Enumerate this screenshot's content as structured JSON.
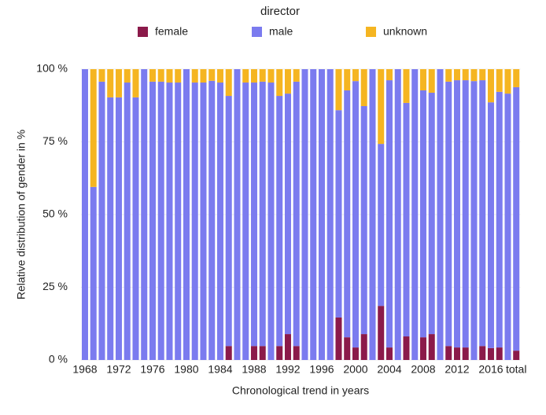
{
  "chart_data": {
    "type": "stacked-bar",
    "legend_title": "director",
    "x_label": "Chronological trend in years",
    "y_label": "Relative distribution of gender in %",
    "categories": [
      "1968",
      null,
      null,
      null,
      "1972",
      null,
      null,
      null,
      "1976",
      null,
      null,
      null,
      "1980",
      null,
      null,
      null,
      "1984",
      null,
      null,
      null,
      "1988",
      null,
      null,
      null,
      "1992",
      null,
      null,
      null,
      "1996",
      null,
      null,
      null,
      "2000",
      null,
      null,
      null,
      "2004",
      null,
      null,
      null,
      "2008",
      null,
      null,
      null,
      "2012",
      null,
      null,
      null,
      "2016",
      null,
      null,
      "total"
    ],
    "series": [
      {
        "name": "female",
        "color": "#8b1a4a",
        "values": [
          0,
          0,
          0,
          0,
          0,
          0,
          0,
          0,
          0,
          0,
          0,
          0,
          0,
          0,
          0,
          0,
          0,
          4.8,
          0,
          0,
          4.8,
          4.8,
          0,
          4.8,
          8.9,
          4.8,
          0,
          0,
          0,
          0,
          14.6,
          7.8,
          4.3,
          8.9,
          0,
          18.6,
          4.3,
          0,
          8.1,
          0,
          7.8,
          8.9,
          0,
          4.8,
          4.3,
          4.3,
          0,
          4.8,
          4.1,
          4.3,
          0,
          3.2
        ]
      },
      {
        "name": "male",
        "color": "#7b7bef",
        "values": [
          100,
          59.5,
          95.7,
          90.3,
          90.3,
          95.4,
          90.3,
          100,
          95.7,
          95.7,
          95.4,
          95.4,
          100,
          95.4,
          95.4,
          96,
          95.4,
          86,
          100,
          95.4,
          90.6,
          90.9,
          95.4,
          86,
          82.7,
          90.9,
          100,
          100,
          100,
          100,
          71.3,
          84.9,
          91.6,
          78.4,
          100,
          55.7,
          91.9,
          100,
          80.3,
          100,
          84.9,
          83,
          100,
          90.9,
          91.9,
          91.9,
          95.9,
          91.4,
          84.5,
          87.9,
          91.6,
          90.6
        ]
      },
      {
        "name": "unknown",
        "color": "#f5b521",
        "values": [
          0,
          40.5,
          4.3,
          9.7,
          9.7,
          4.6,
          9.7,
          0,
          4.3,
          4.3,
          4.6,
          4.6,
          0,
          4.6,
          4.6,
          4,
          4.6,
          9.2,
          0,
          4.6,
          4.6,
          4.3,
          4.6,
          9.2,
          8.4,
          4.3,
          0,
          0,
          0,
          0,
          14.1,
          7.3,
          4.1,
          12.7,
          0,
          25.7,
          3.8,
          0,
          11.6,
          0,
          7.3,
          8.1,
          0,
          4.3,
          3.8,
          3.8,
          4.1,
          3.8,
          11.4,
          7.8,
          8.4,
          6.2
        ]
      }
    ],
    "ylim": [
      0,
      100
    ],
    "yticks": [
      {
        "value": 0,
        "label": "0 %"
      },
      {
        "value": 25,
        "label": "25 %"
      },
      {
        "value": 50,
        "label": "50 %"
      },
      {
        "value": 75,
        "label": "75 %"
      },
      {
        "value": 100,
        "label": "100 %"
      }
    ],
    "grid": true
  }
}
